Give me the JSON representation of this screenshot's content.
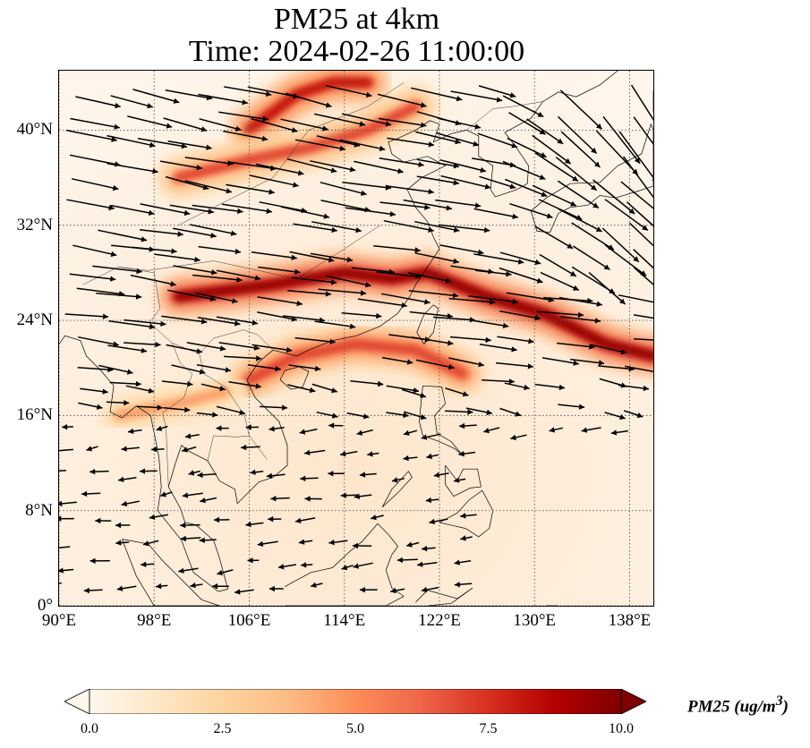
{
  "title": {
    "line1": "PM25 at 4km",
    "line2": "Time: 2024-02-26 11:00:00"
  },
  "map": {
    "region": "East and Southeast Asia",
    "lon_range": [
      90,
      140
    ],
    "lat_range": [
      0,
      45
    ],
    "gridlines": true,
    "gridline_style": "dotted",
    "x_ticks": [
      "90°E",
      "98°E",
      "106°E",
      "114°E",
      "122°E",
      "130°E",
      "138°E"
    ],
    "x_tick_values": [
      90,
      98,
      106,
      114,
      122,
      130,
      138
    ],
    "y_ticks": [
      "0°",
      "8°N",
      "16°N",
      "24°N",
      "32°N",
      "40°N"
    ],
    "y_tick_values": [
      0,
      8,
      16,
      24,
      32,
      40
    ],
    "plumes": [
      {
        "name": "north-china-plume",
        "peak": 9,
        "path": [
          [
            106,
            40
          ],
          [
            110,
            43
          ],
          [
            113,
            44
          ],
          [
            116,
            44
          ]
        ]
      },
      {
        "name": "yellow-river-band",
        "peak": 7,
        "path": [
          [
            100,
            36
          ],
          [
            106,
            37.5
          ],
          [
            111,
            38.5
          ],
          [
            116,
            40
          ],
          [
            120,
            42
          ]
        ]
      },
      {
        "name": "east-china-sea-band",
        "peak": 10,
        "path": [
          [
            100,
            26
          ],
          [
            108,
            27
          ],
          [
            114,
            28
          ],
          [
            118,
            27.5
          ],
          [
            121,
            28
          ],
          [
            126,
            26
          ],
          [
            131,
            24.5
          ],
          [
            136,
            22
          ],
          [
            140,
            21
          ]
        ]
      },
      {
        "name": "south-china-band",
        "peak": 8,
        "path": [
          [
            106,
            19
          ],
          [
            110,
            21
          ],
          [
            115,
            22
          ],
          [
            120,
            21.5
          ],
          [
            124,
            19.5
          ]
        ]
      },
      {
        "name": "indochina-band",
        "peak": 5,
        "path": [
          [
            95,
            16
          ],
          [
            100,
            17
          ],
          [
            104,
            18
          ]
        ]
      }
    ],
    "wind_vectors": "synoptic westerlies north of 16°N, northeasterly trades south of 16°N"
  },
  "colorbar": {
    "colormap": "OrRd",
    "colors": [
      "#fff7ec",
      "#fee8c8",
      "#fdd49e",
      "#fdbb84",
      "#fc8d59",
      "#ef6548",
      "#d7301f",
      "#b30000",
      "#7f0000"
    ],
    "vmin": 0.0,
    "vmax": 10.0,
    "ticks": [
      "0.0",
      "2.5",
      "5.0",
      "7.5",
      "10.0"
    ],
    "tick_values": [
      0.0,
      2.5,
      5.0,
      7.5,
      10.0
    ],
    "extend": "both",
    "label": "PM25 (ug/m",
    "label_superscript": "3",
    "label_close": ")"
  }
}
